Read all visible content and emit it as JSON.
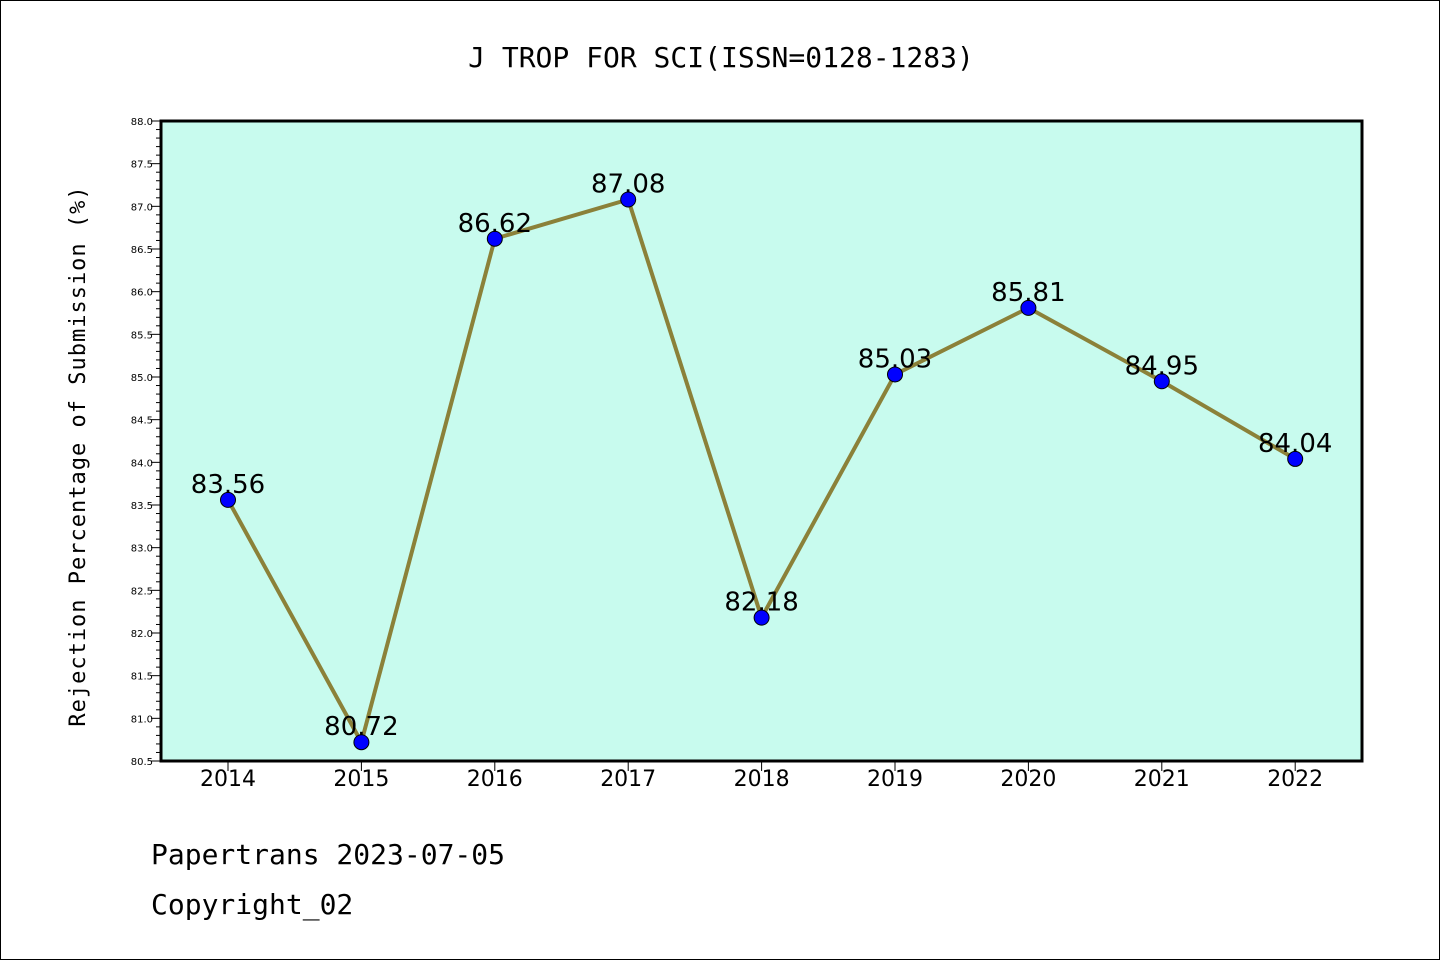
{
  "footer": {
    "line1": "Papertrans 2023-07-05",
    "line2": "Copyright_02"
  },
  "colors": {
    "plot_background": "#c8fbee",
    "line": "#8b8139",
    "marker": "#0000ff"
  },
  "chart_data": {
    "type": "line",
    "title": "J TROP FOR SCI(ISSN=0128-1283)",
    "xlabel": "",
    "ylabel": "Rejection Percentage of Submission (%)",
    "categories": [
      "2014",
      "2015",
      "2016",
      "2017",
      "2018",
      "2019",
      "2020",
      "2021",
      "2022"
    ],
    "values": [
      83.56,
      80.72,
      86.62,
      87.08,
      82.18,
      85.03,
      85.81,
      84.95,
      84.04
    ],
    "data_labels": [
      "83.56",
      "80.72",
      "86.62",
      "87.08",
      "82.18",
      "85.03",
      "85.81",
      "84.95",
      "84.04"
    ],
    "ylim": [
      80.5,
      88.0
    ],
    "yticks": [
      "80.5",
      "81.0",
      "81.5",
      "82.0",
      "82.5",
      "83.0",
      "83.5",
      "84.0",
      "84.5",
      "85.0",
      "85.5",
      "86.0",
      "86.5",
      "87.0",
      "87.5",
      "88.0"
    ],
    "grid": false,
    "legend": "none",
    "markers": true
  }
}
